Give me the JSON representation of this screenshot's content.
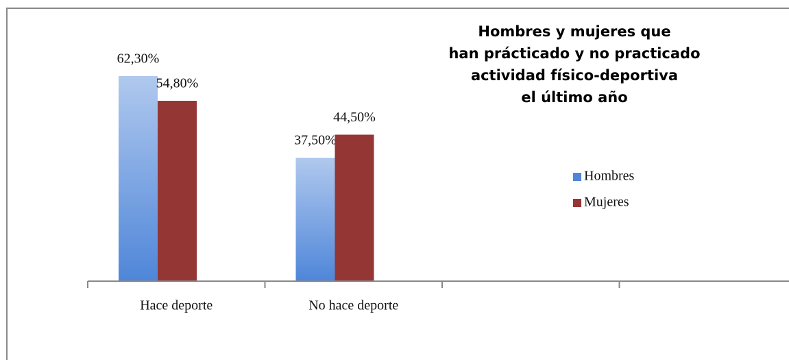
{
  "chart_data": {
    "type": "bar",
    "title": "Hombres y mujeres que\nhan prácticado y no practicado\nactividad físico-deportiva\nel último año",
    "categories": [
      "Hace deporte",
      "No hace deporte",
      null,
      null
    ],
    "series": [
      {
        "name": "Hombres",
        "color": "#4f86d9",
        "values": [
          62.3,
          37.5,
          null,
          null
        ],
        "value_labels": [
          "62,30%",
          "37,50%",
          null,
          null
        ]
      },
      {
        "name": "Mujeres",
        "color": "#943634",
        "values": [
          54.8,
          44.5,
          null,
          null
        ],
        "value_labels": [
          "54,80%",
          "44,50%",
          null,
          null
        ]
      }
    ],
    "legend": "right"
  }
}
